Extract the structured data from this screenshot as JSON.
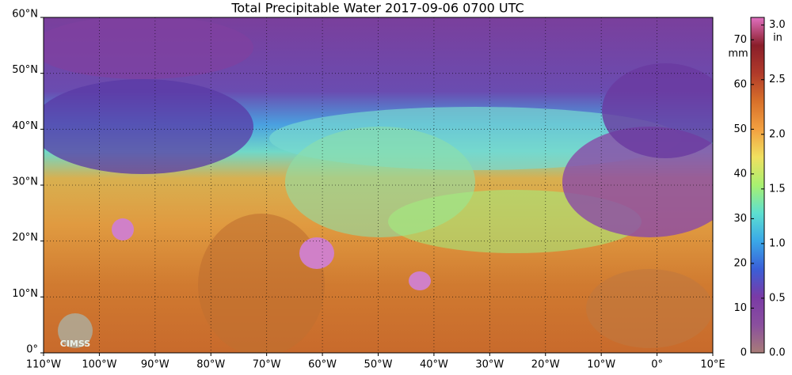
{
  "map": {
    "title": "Total Precipitable Water  2017-09-06 0700 UTC",
    "lon_range": [
      -110,
      10
    ],
    "lat_range": [
      0,
      60
    ],
    "lon_ticks": [
      {
        "value": -110,
        "label": "110°W"
      },
      {
        "value": -100,
        "label": "100°W"
      },
      {
        "value": -90,
        "label": "90°W"
      },
      {
        "value": -80,
        "label": "80°W"
      },
      {
        "value": -70,
        "label": "70°W"
      },
      {
        "value": -60,
        "label": "60°W"
      },
      {
        "value": -50,
        "label": "50°W"
      },
      {
        "value": -40,
        "label": "40°W"
      },
      {
        "value": -30,
        "label": "30°W"
      },
      {
        "value": -20,
        "label": "20°W"
      },
      {
        "value": -10,
        "label": "10°W"
      },
      {
        "value": 0,
        "label": "0°"
      },
      {
        "value": 10,
        "label": "10°E"
      }
    ],
    "lat_ticks": [
      {
        "value": 0,
        "label": "0°"
      },
      {
        "value": 10,
        "label": "10°N"
      },
      {
        "value": 20,
        "label": "20°N"
      },
      {
        "value": 30,
        "label": "30°N"
      },
      {
        "value": 40,
        "label": "40°N"
      },
      {
        "value": 50,
        "label": "50°N"
      },
      {
        "value": 60,
        "label": "60°N"
      }
    ],
    "colorbar": {
      "left_unit": "mm",
      "right_unit": "in",
      "mm_range": [
        0,
        75
      ],
      "mm_ticks": [
        0,
        10,
        20,
        30,
        40,
        50,
        60,
        70
      ],
      "in_range": [
        0,
        3.07
      ],
      "in_ticks": [
        {
          "value": 0,
          "label": "0.0"
        },
        {
          "value": 0.5,
          "label": "0.5"
        },
        {
          "value": 1,
          "label": "1.0"
        },
        {
          "value": 1.5,
          "label": "1.5"
        },
        {
          "value": 2,
          "label": "2.0"
        },
        {
          "value": 2.5,
          "label": "2.5"
        },
        {
          "value": 3,
          "label": "3.0"
        }
      ],
      "colors": [
        "#a87c78",
        "#8a4f9e",
        "#7a3aa6",
        "#3a5fd8",
        "#3aa8e8",
        "#5de0d0",
        "#a8f070",
        "#f0e060",
        "#f2a040",
        "#d8702a",
        "#b03a2a",
        "#8a1e2a",
        "#e070c0"
      ]
    },
    "logo": "CIMSS"
  }
}
